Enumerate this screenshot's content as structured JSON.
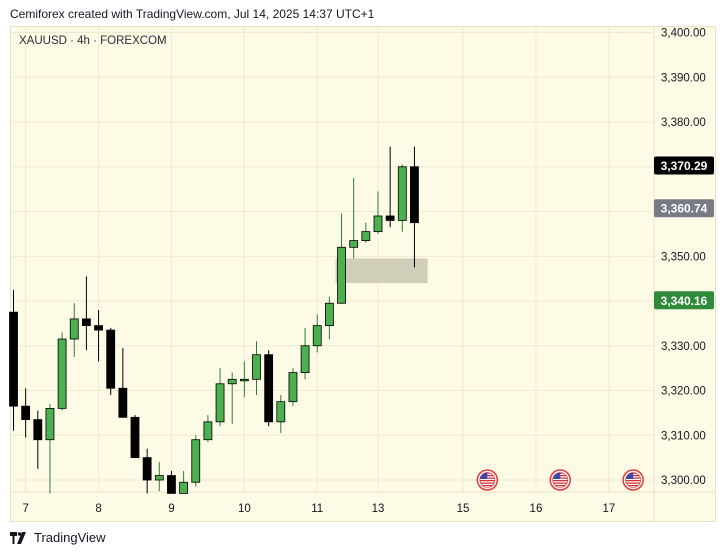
{
  "header": {
    "text": "Cemiforex created with TradingView.com, Jul 14, 2025 14:37 UTC+1"
  },
  "symbol": {
    "text": "XAUUSD · 4h · FOREXCOM"
  },
  "footer": {
    "brand": "TradingView"
  },
  "colors": {
    "up": "#4caf50",
    "down": "#000000",
    "background": "#fdfae6",
    "zone": "#c8c6b0",
    "grid": "#eeead0",
    "last_price_bg": "#000000",
    "mid_label_bg": "#787b86",
    "green_label_bg": "#2e8b3a"
  },
  "chart_data": {
    "type": "candlestick",
    "title": "",
    "xlabel": "",
    "ylabel": "",
    "ylim": [
      3296,
      3401
    ],
    "yticks": [
      3300,
      3310,
      3320,
      3330,
      3340,
      3350,
      3360,
      3370,
      3380,
      3390,
      3400
    ],
    "ytick_labels": [
      "3,300.00",
      "3,310.00",
      "3,320.00",
      "3,330.00",
      "3,340.00",
      "3,350.00",
      "3,360.00",
      "3,370.00",
      "3,380.00",
      "3,390.00",
      "3,400.00"
    ],
    "xtick_labels": [
      {
        "label": "7",
        "index": 1
      },
      {
        "label": "8",
        "index": 7
      },
      {
        "label": "9",
        "index": 13
      },
      {
        "label": "10",
        "index": 19
      },
      {
        "label": "11",
        "index": 25
      },
      {
        "label": "13",
        "index": 30
      },
      {
        "label": "15",
        "index": 37
      },
      {
        "label": "16",
        "index": 43
      },
      {
        "label": "17",
        "index": 49
      }
    ],
    "candles": [
      {
        "o": 3337.5,
        "h": 3342.5,
        "l": 3311.0,
        "c": 3316.5
      },
      {
        "o": 3316.5,
        "h": 3320.5,
        "l": 3309.5,
        "c": 3313.5
      },
      {
        "o": 3313.5,
        "h": 3315.5,
        "l": 3302.5,
        "c": 3309.0
      },
      {
        "o": 3309.0,
        "h": 3317.0,
        "l": 3297.0,
        "c": 3316.0
      },
      {
        "o": 3316.0,
        "h": 3333.0,
        "l": 3315.5,
        "c": 3331.5
      },
      {
        "o": 3331.5,
        "h": 3339.5,
        "l": 3327.5,
        "c": 3336.0
      },
      {
        "o": 3336.0,
        "h": 3345.5,
        "l": 3329.0,
        "c": 3334.5
      },
      {
        "o": 3334.5,
        "h": 3338.0,
        "l": 3326.5,
        "c": 3333.5
      },
      {
        "o": 3333.5,
        "h": 3334.0,
        "l": 3319.0,
        "c": 3320.5
      },
      {
        "o": 3320.5,
        "h": 3329.5,
        "l": 3314.5,
        "c": 3314.0
      },
      {
        "o": 3314.0,
        "h": 3314.5,
        "l": 3305.0,
        "c": 3305.0
      },
      {
        "o": 3305.0,
        "h": 3307.0,
        "l": 3297.0,
        "c": 3300.0
      },
      {
        "o": 3300.0,
        "h": 3304.0,
        "l": 3297.5,
        "c": 3301.0
      },
      {
        "o": 3301.0,
        "h": 3302.0,
        "l": 3297.0,
        "c": 3297.0
      },
      {
        "o": 3297.0,
        "h": 3302.0,
        "l": 3297.0,
        "c": 3299.5
      },
      {
        "o": 3299.5,
        "h": 3310.0,
        "l": 3298.5,
        "c": 3309.0
      },
      {
        "o": 3309.0,
        "h": 3314.5,
        "l": 3308.5,
        "c": 3313.0
      },
      {
        "o": 3313.0,
        "h": 3325.0,
        "l": 3312.0,
        "c": 3321.5
      },
      {
        "o": 3321.5,
        "h": 3324.0,
        "l": 3312.5,
        "c": 3322.5
      },
      {
        "o": 3322.5,
        "h": 3326.5,
        "l": 3318.5,
        "c": 3322.5
      },
      {
        "o": 3322.5,
        "h": 3331.0,
        "l": 3319.0,
        "c": 3328.0
      },
      {
        "o": 3328.0,
        "h": 3329.0,
        "l": 3312.0,
        "c": 3313.0
      },
      {
        "o": 3313.0,
        "h": 3319.0,
        "l": 3310.5,
        "c": 3317.5
      },
      {
        "o": 3317.5,
        "h": 3325.0,
        "l": 3316.5,
        "c": 3324.0
      },
      {
        "o": 3324.0,
        "h": 3334.0,
        "l": 3322.5,
        "c": 3330.0
      },
      {
        "o": 3330.0,
        "h": 3337.0,
        "l": 3328.5,
        "c": 3334.5
      },
      {
        "o": 3334.5,
        "h": 3341.0,
        "l": 3331.5,
        "c": 3339.5
      },
      {
        "o": 3339.5,
        "h": 3359.5,
        "l": 3339.5,
        "c": 3352.0
      },
      {
        "o": 3352.0,
        "h": 3367.5,
        "l": 3349.5,
        "c": 3353.5
      },
      {
        "o": 3353.5,
        "h": 3357.5,
        "l": 3353.0,
        "c": 3355.5
      },
      {
        "o": 3355.5,
        "h": 3364.5,
        "l": 3355.0,
        "c": 3359.0
      },
      {
        "o": 3359.0,
        "h": 3374.5,
        "l": 3356.5,
        "c": 3358.0
      },
      {
        "o": 3358.0,
        "h": 3370.5,
        "l": 3355.5,
        "c": 3370.0
      },
      {
        "o": 3370.0,
        "h": 3374.5,
        "l": 3347.5,
        "c": 3357.5
      }
    ],
    "zone": {
      "x_start_index": 27,
      "x_end_index": 34,
      "low": 3344.0,
      "high": 3349.5
    },
    "price_labels": [
      {
        "value": 3370.29,
        "text": "3,370.29",
        "style": "last"
      },
      {
        "value": 3360.74,
        "text": "3,360.74",
        "style": "mid"
      },
      {
        "value": 3340.16,
        "text": "3,340.16",
        "style": "green"
      }
    ],
    "event_markers": [
      {
        "index": 39,
        "value": 3300.0,
        "label": "US"
      },
      {
        "index": 45,
        "value": 3300.0,
        "label": "US"
      },
      {
        "index": 51,
        "value": 3300.0,
        "label": "US"
      }
    ]
  }
}
